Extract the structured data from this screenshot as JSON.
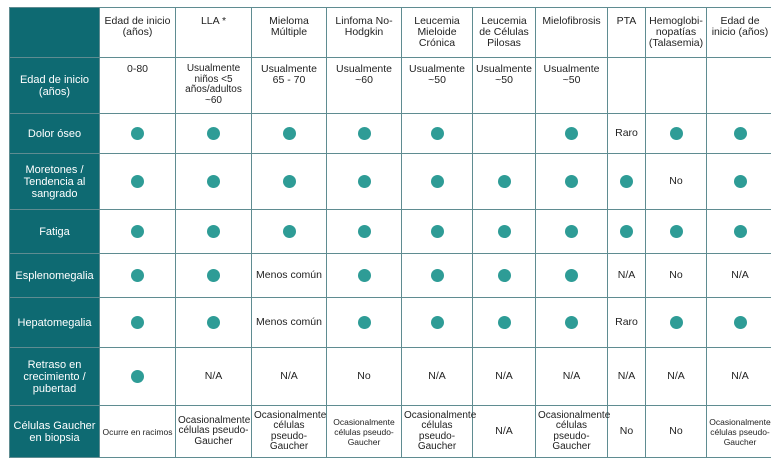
{
  "header": [
    "Edad de inicio (años)",
    "LLA *",
    "Mieloma Múltiple",
    "Linfoma No-Hodgkin",
    "Leucemia Mieloide Crónica",
    "Leucemia de Células Pilosas",
    "Mielofibrosis",
    "PTA",
    "Hemoglobi-nopatías (Talasemia)",
    "Edad de inicio (años)"
  ],
  "rows": [
    {
      "label": "Edad de inicio (años)",
      "cells": [
        "0-80",
        "Usualmente niños <5 años/adultos ~60",
        "Usualmente 65 - 70",
        "Usualmente ~60",
        "Usualmente ~50",
        "Usualmente ~50",
        "Usualmente ~50",
        "",
        "",
        ""
      ]
    },
    {
      "label": "Dolor óseo",
      "cells": [
        "●",
        "●",
        "●",
        "●",
        "●",
        "",
        "●",
        "Raro",
        "●",
        "●"
      ]
    },
    {
      "label": "Moretones / Tendencia al sangrado",
      "cells": [
        "●",
        "●",
        "●",
        "●",
        "●",
        "●",
        "●",
        "●",
        "No",
        "●"
      ]
    },
    {
      "label": "Fatiga",
      "cells": [
        "●",
        "●",
        "●",
        "●",
        "●",
        "●",
        "●",
        "●",
        "●",
        "●"
      ]
    },
    {
      "label": "Esplenomegalia",
      "cells": [
        "●",
        "●",
        "Menos común",
        "●",
        "●",
        "●",
        "●",
        "N/A",
        "No",
        "N/A"
      ]
    },
    {
      "label": "Hepatomegalia",
      "cells": [
        "●",
        "●",
        "Menos común",
        "●",
        "●",
        "●",
        "●",
        "Raro",
        "●",
        "●"
      ]
    },
    {
      "label": "Retraso en crecimiento / pubertad",
      "cells": [
        "●",
        "N/A",
        "N/A",
        "No",
        "N/A",
        "N/A",
        "N/A",
        "N/A",
        "N/A",
        "N/A"
      ]
    },
    {
      "label": "Células Gaucher en biopsia",
      "cells": [
        "Ocurre en racimos",
        "Ocasionalmente células pseudo-Gaucher",
        "Ocasionalmente células pseudo-Gaucher",
        "Ocasionalmente células pseudo-Gaucher",
        "Ocasionalmente células pseudo-Gaucher",
        "N/A",
        "Ocasionalmente células pseudo-Gaucher",
        "No",
        "No",
        "Ocasionalmente células pseudo-Gaucher"
      ]
    }
  ],
  "colors": {
    "header_bg": "#0e6a72",
    "dot": "#2e9c96",
    "border": "#5f8c91"
  },
  "icons": {
    "present_marker": "filled-circle-icon"
  }
}
